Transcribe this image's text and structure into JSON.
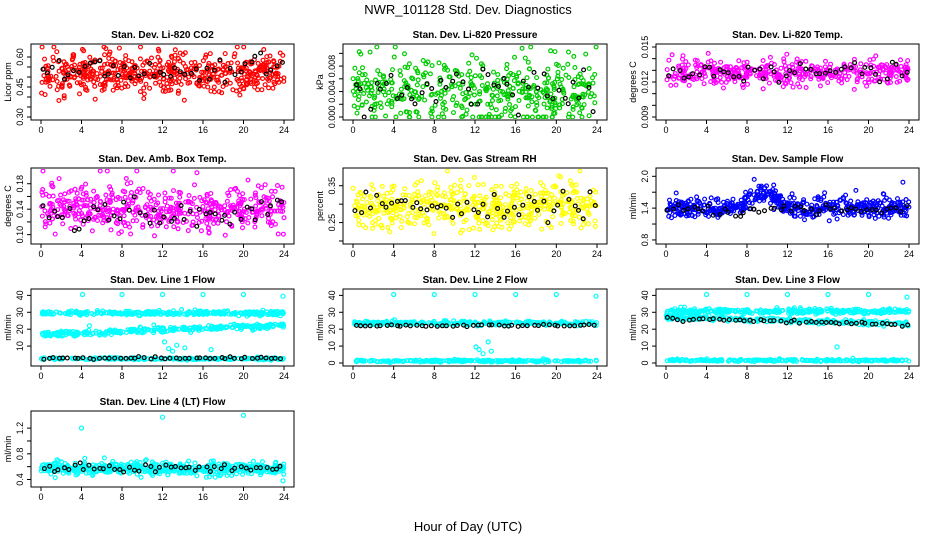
{
  "title": "NWR_101128  Std. Dev. Diagnostics",
  "xlabel": "Hour of Day (UTC)",
  "colors": {
    "data": "#000000",
    "red": "#ff0000",
    "green": "#00cc00",
    "magenta": "#ff00ff",
    "yellow": "#ffff00",
    "blue": "#0000ff",
    "cyan": "#00ffff"
  },
  "chart_data": [
    {
      "type": "scatter",
      "title": "Stan. Dev. Li-820 CO2",
      "ylabel": "Licor ppm",
      "xlim": [
        0,
        24
      ],
      "ylim": [
        0.3,
        0.65
      ],
      "xticks": [
        "0",
        "4",
        "8",
        "12",
        "16",
        "20",
        "24"
      ],
      "yticks": [
        "0.30",
        "0.45",
        "0.60"
      ],
      "ytick_values": [
        0.3,
        0.45,
        0.6
      ],
      "minor_yticks": [
        "0.35",
        "0.40",
        "0.50",
        "0.55"
      ],
      "minor_ytick_values": [
        0.35,
        0.4,
        0.5,
        0.55
      ],
      "series": [
        {
          "color": "#ff0000",
          "count": 540,
          "center": 0.52,
          "spread": 0.05,
          "min": 0.3,
          "max": 0.65
        },
        {
          "color": "#000000",
          "count": 48,
          "center": 0.53,
          "spread": 0.035,
          "min": 0.4,
          "max": 0.62
        }
      ]
    },
    {
      "type": "scatter",
      "title": "Stan. Dev. Li-820 Pressure",
      "ylabel": "kPa",
      "xlim": [
        0,
        24
      ],
      "ylim": [
        0,
        0.011
      ],
      "xticks": [
        "0",
        "4",
        "8",
        "12",
        "16",
        "20",
        "24"
      ],
      "yticks": [
        "0.000",
        "0.004",
        "0.008"
      ],
      "ytick_values": [
        0,
        0.004,
        0.008
      ],
      "minor_yticks": [
        "0.002",
        "0.006",
        "0.010"
      ],
      "minor_ytick_values": [
        0.002,
        0.006,
        0.01
      ],
      "series": [
        {
          "color": "#00cc00",
          "count": 460,
          "center": 0.004,
          "spread": 0.0026,
          "min": 0,
          "max": 0.011
        },
        {
          "color": "#000000",
          "count": 48,
          "center": 0.0045,
          "spread": 0.002,
          "min": 0,
          "max": 0.011
        }
      ]
    },
    {
      "type": "scatter",
      "title": "Stan. Dev. Li-820 Temp.",
      "ylabel": "degrees C",
      "xlim": [
        0,
        24
      ],
      "ylim": [
        0.009,
        0.015
      ],
      "xticks": [
        "0",
        "4",
        "8",
        "12",
        "16",
        "20",
        "24"
      ],
      "yticks": [
        "0.009",
        "0.012",
        "0.015"
      ],
      "ytick_values": [
        0.009,
        0.012,
        0.015
      ],
      "minor_yticks": [
        "0.010",
        "0.011",
        "0.013",
        "0.014"
      ],
      "minor_ytick_values": [
        0.01,
        0.011,
        0.013,
        0.014
      ],
      "series": [
        {
          "color": "#ff00ff",
          "count": 420,
          "center": 0.0128,
          "spread": 0.0005,
          "min": 0.009,
          "max": 0.015
        },
        {
          "color": "#000000",
          "count": 48,
          "center": 0.0128,
          "spread": 0.0004,
          "min": 0.0105,
          "max": 0.0145
        }
      ]
    },
    {
      "type": "scatter",
      "title": "Stan. Dev. Amb. Box Temp.",
      "ylabel": "degrees C",
      "xlim": [
        0,
        24
      ],
      "ylim": [
        0.09,
        0.2
      ],
      "xticks": [
        "0",
        "4",
        "8",
        "12",
        "16",
        "20",
        "24"
      ],
      "yticks": [
        "0.10",
        "0.14",
        "0.18"
      ],
      "ytick_values": [
        0.1,
        0.14,
        0.18
      ],
      "minor_yticks": [
        "0.12",
        "0.16"
      ],
      "minor_ytick_values": [
        0.12,
        0.16
      ],
      "series": [
        {
          "color": "#ff00ff",
          "count": 500,
          "center": 0.14,
          "spread": 0.018,
          "min": 0.09,
          "max": 0.2
        },
        {
          "color": "#000000",
          "count": 48,
          "center": 0.132,
          "spread": 0.012,
          "min": 0.1,
          "max": 0.17
        }
      ]
    },
    {
      "type": "scatter",
      "title": "Stan. Dev. Gas Stream RH",
      "ylabel": "percent",
      "xlim": [
        0,
        24
      ],
      "ylim": [
        0.2,
        0.39
      ],
      "xticks": [
        "0",
        "4",
        "8",
        "12",
        "16",
        "20",
        "24"
      ],
      "yticks": [
        "0.25",
        "0.35"
      ],
      "ytick_values": [
        0.25,
        0.35
      ],
      "minor_yticks": [
        "0.20",
        "0.30"
      ],
      "minor_ytick_values": [
        0.2,
        0.3
      ],
      "series": [
        {
          "color": "#ffff00",
          "count": 520,
          "center": 0.295,
          "spread": 0.028,
          "min": 0.22,
          "max": 0.39
        },
        {
          "color": "#000000",
          "count": 48,
          "center": 0.292,
          "spread": 0.02,
          "min": 0.24,
          "max": 0.36
        }
      ]
    },
    {
      "type": "scatter",
      "title": "Stan. Dev. Sample Flow",
      "ylabel": "ml/min",
      "xlim": [
        0,
        24
      ],
      "ylim": [
        0.78,
        2.1
      ],
      "xticks": [
        "0",
        "4",
        "8",
        "12",
        "16",
        "20",
        "24"
      ],
      "yticks": [
        "0.8",
        "1.4",
        "2.0"
      ],
      "ytick_values": [
        0.8,
        1.4,
        2.0
      ],
      "minor_yticks": [
        "1.1",
        "1.7"
      ],
      "minor_ytick_values": [
        1.1,
        1.7
      ],
      "series": [
        {
          "color": "#0000ff",
          "count": 540,
          "center": 1.4,
          "spread": 0.09,
          "min": 0.8,
          "max": 2.1,
          "bump": {
            "x": 9.5,
            "width": 1.8,
            "height": 0.3
          }
        },
        {
          "color": "#000000",
          "count": 48,
          "center": 1.38,
          "spread": 0.05,
          "min": 1.2,
          "max": 1.6
        }
      ]
    },
    {
      "type": "scatter",
      "title": "Stan. Dev. Line 1 Flow",
      "ylabel": "ml/min",
      "xlim": [
        0,
        24
      ],
      "ylim": [
        0,
        42
      ],
      "xticks": [
        "0",
        "4",
        "8",
        "12",
        "16",
        "20",
        "24"
      ],
      "yticks": [
        "10",
        "20",
        "30",
        "40"
      ],
      "ytick_values": [
        10,
        20,
        30,
        40
      ],
      "series": [
        {
          "color": "#00ffff",
          "count": 300,
          "center": 29.5,
          "spread": 0.6,
          "min": 26,
          "max": 33
        },
        {
          "color": "#00ffff",
          "count": 300,
          "center": 19.5,
          "spread": 0.8,
          "min": 16,
          "max": 23,
          "trend": 3.0
        },
        {
          "color": "#00ffff",
          "count": 200,
          "center": 2.5,
          "spread": 0.3,
          "min": 1,
          "max": 4
        },
        {
          "color": "#000000",
          "count": 48,
          "center": 2.8,
          "spread": 0.25,
          "min": 2,
          "max": 4
        }
      ],
      "outliers": [
        {
          "x": 4.1,
          "y": 40.5
        },
        {
          "x": 8.0,
          "y": 40.5
        },
        {
          "x": 12.0,
          "y": 40.5
        },
        {
          "x": 16.0,
          "y": 40.5
        },
        {
          "x": 20.0,
          "y": 40.5
        },
        {
          "x": 23.9,
          "y": 39.5
        },
        {
          "x": 12.6,
          "y": 8.5
        },
        {
          "x": 13.0,
          "y": 7.0
        },
        {
          "x": 13.4,
          "y": 10.5
        },
        {
          "x": 14.2,
          "y": 9.0
        },
        {
          "x": 16.8,
          "y": 8.0
        },
        {
          "x": 12.2,
          "y": 12.5
        }
      ]
    },
    {
      "type": "scatter",
      "title": "Stan. Dev. Line 2 Flow",
      "ylabel": "ml/min",
      "xlim": [
        0,
        24
      ],
      "ylim": [
        0,
        42
      ],
      "xticks": [
        "0",
        "4",
        "8",
        "12",
        "16",
        "20",
        "24"
      ],
      "yticks": [
        "0",
        "10",
        "20",
        "30",
        "40"
      ],
      "ytick_values": [
        0,
        10,
        20,
        30,
        40
      ],
      "series": [
        {
          "color": "#00ffff",
          "count": 300,
          "center": 23.5,
          "spread": 0.6,
          "min": 20,
          "max": 27
        },
        {
          "color": "#00ffff",
          "count": 220,
          "center": 1.2,
          "spread": 0.3,
          "min": 0.2,
          "max": 2.5
        },
        {
          "color": "#000000",
          "count": 48,
          "center": 22.2,
          "spread": 0.35,
          "min": 20.5,
          "max": 24
        }
      ],
      "outliers": [
        {
          "x": 4.0,
          "y": 40.5
        },
        {
          "x": 8.0,
          "y": 40.5
        },
        {
          "x": 12.0,
          "y": 40.5
        },
        {
          "x": 16.0,
          "y": 40.5
        },
        {
          "x": 20.0,
          "y": 40.5
        },
        {
          "x": 23.9,
          "y": 39.5
        },
        {
          "x": 12.4,
          "y": 8.0
        },
        {
          "x": 12.8,
          "y": 5.5
        },
        {
          "x": 13.3,
          "y": 12.5
        },
        {
          "x": 12.1,
          "y": 9.5
        },
        {
          "x": 13.6,
          "y": 7.0
        }
      ]
    },
    {
      "type": "scatter",
      "title": "Stan. Dev. Line 3 Flow",
      "ylabel": "ml/min",
      "xlim": [
        0,
        24
      ],
      "ylim": [
        0,
        42
      ],
      "xticks": [
        "0",
        "4",
        "8",
        "12",
        "16",
        "20",
        "24"
      ],
      "yticks": [
        "0",
        "10",
        "20",
        "30",
        "40"
      ],
      "ytick_values": [
        0,
        10,
        20,
        30,
        40
      ],
      "series": [
        {
          "color": "#00ffff",
          "count": 300,
          "center": 30.5,
          "spread": 0.7,
          "min": 27,
          "max": 35
        },
        {
          "color": "#00ffff",
          "count": 260,
          "center": 25.0,
          "spread": 0.7,
          "min": 21,
          "max": 28,
          "trend": -2.0
        },
        {
          "color": "#00ffff",
          "count": 220,
          "center": 1.5,
          "spread": 0.3,
          "min": 0.3,
          "max": 3
        },
        {
          "color": "#000000",
          "count": 48,
          "center": 24.5,
          "spread": 0.5,
          "min": 21,
          "max": 27,
          "trend": -2.0
        }
      ],
      "outliers": [
        {
          "x": 4.0,
          "y": 40.5
        },
        {
          "x": 8.0,
          "y": 40.5
        },
        {
          "x": 12.0,
          "y": 40.5
        },
        {
          "x": 16.0,
          "y": 40.5
        },
        {
          "x": 20.0,
          "y": 40.5
        },
        {
          "x": 23.8,
          "y": 39.0
        },
        {
          "x": 16.9,
          "y": 9.5
        }
      ]
    },
    {
      "type": "scatter",
      "title": "Stan. Dev. Line 4 (LT) Flow",
      "ylabel": "ml/min",
      "xlim": [
        0,
        24
      ],
      "ylim": [
        0.33,
        1.42
      ],
      "xticks": [
        "0",
        "4",
        "8",
        "12",
        "16",
        "20",
        "24"
      ],
      "yticks": [
        "0.4",
        "0.8",
        "1.2"
      ],
      "ytick_values": [
        0.4,
        0.8,
        1.2
      ],
      "minor_yticks": [
        "0.6",
        "1.0"
      ],
      "minor_ytick_values": [
        0.6,
        1.0
      ],
      "series": [
        {
          "color": "#00ffff",
          "count": 560,
          "center": 0.57,
          "spread": 0.045,
          "min": 0.38,
          "max": 0.75
        },
        {
          "color": "#000000",
          "count": 48,
          "center": 0.58,
          "spread": 0.035,
          "min": 0.45,
          "max": 0.7
        }
      ],
      "outliers": [
        {
          "x": 4.0,
          "y": 1.2
        },
        {
          "x": 12.0,
          "y": 1.37
        },
        {
          "x": 20.0,
          "y": 1.4
        },
        {
          "x": 23.9,
          "y": 0.38
        }
      ]
    }
  ]
}
